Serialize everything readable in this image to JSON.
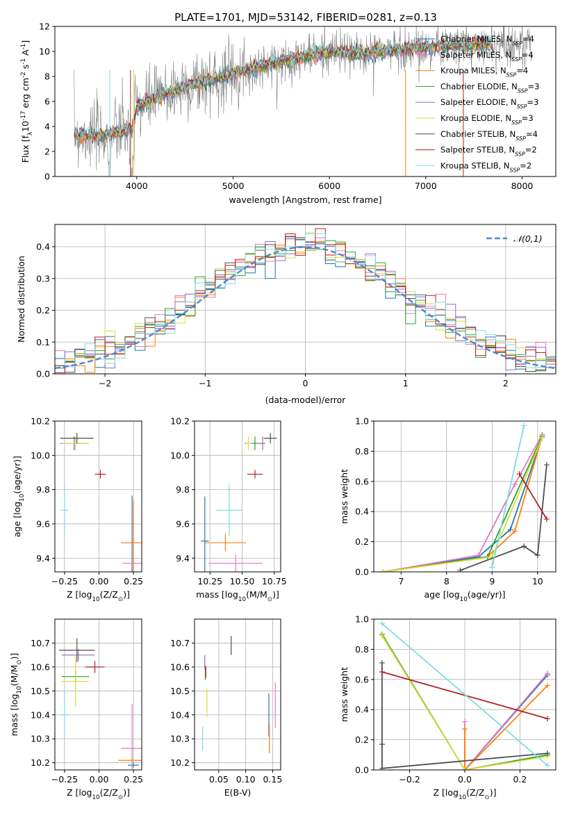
{
  "figure": {
    "title": "PLATE=1701, MJD=53142, FIBERID=0281, z=0.13"
  },
  "series": [
    {
      "name": "Chabrier MILES, N$_{SSP}$=4",
      "label_main": "Chabrier MILES, N",
      "label_sub": "SSP",
      "label_tail": "=4",
      "color": "#1f77b4"
    },
    {
      "name": "Salpeter MILES, N$_{SSP}$=4",
      "label_main": "Salpeter MILES, N",
      "label_sub": "SSP",
      "label_tail": "=4",
      "color": "#e377c2"
    },
    {
      "name": "Kroupa MILES, N$_{SSP}$=4",
      "label_main": "Kroupa MILES, N",
      "label_sub": "SSP",
      "label_tail": "=4",
      "color": "#ff7f0e"
    },
    {
      "name": "Chabrier ELODIE, N$_{SSP}$=3",
      "label_main": "Chabrier ELODIE, N",
      "label_sub": "SSP",
      "label_tail": "=3",
      "color": "#2ca02c"
    },
    {
      "name": "Salpeter ELODIE, N$_{SSP}$=3",
      "label_main": "Salpeter ELODIE, N",
      "label_sub": "SSP",
      "label_tail": "=3",
      "color": "#9467bd"
    },
    {
      "name": "Kroupa ELODIE, N$_{SSP}$=3",
      "label_main": "Kroupa ELODIE, N",
      "label_sub": "SSP",
      "label_tail": "=3",
      "color": "#dbdb3d"
    },
    {
      "name": "Chabrier STELIB, N$_{SSP}$=4",
      "label_main": "Chabrier STELIB, N",
      "label_sub": "SSP",
      "label_tail": "=4",
      "color": "#4d4d4d"
    },
    {
      "name": "Salpeter STELIB, N$_{SSP}$=2",
      "label_main": "Salpeter STELIB, N",
      "label_sub": "SSP",
      "label_tail": "=2",
      "color": "#b22222"
    },
    {
      "name": "Kroupa STELIB, N$_{SSP}$=2",
      "label_main": "Kroupa STELIB, N",
      "label_sub": "SSP",
      "label_tail": "=2",
      "color": "#7fdbe0"
    }
  ],
  "chart_data": [
    {
      "id": "spectrum",
      "type": "line",
      "xlabel": "wavelength [Angstrom, rest frame]",
      "ylabel": "Flux [f$_\\lambda$10$^{-17}$ erg cm$^{-2}$ s$^{-1}$ A$^{-1}$]",
      "xlim": [
        3150,
        8350
      ],
      "ylim": [
        0,
        12
      ],
      "xticks": [
        4000,
        5000,
        6000,
        7000,
        8000
      ],
      "yticks": [
        0,
        2,
        4,
        6,
        8,
        10,
        12
      ],
      "data_color": "#808080",
      "data_range": [
        3350,
        8100
      ],
      "model_range": [
        3350,
        7700
      ],
      "continuum": [
        [
          3350,
          3.4
        ],
        [
          3600,
          3.2
        ],
        [
          3800,
          3.5
        ],
        [
          3950,
          3.8
        ],
        [
          4000,
          5.5
        ],
        [
          4200,
          6.3
        ],
        [
          4500,
          7.2
        ],
        [
          4800,
          7.8
        ],
        [
          5000,
          8.3
        ],
        [
          5200,
          8.6
        ],
        [
          5500,
          9.2
        ],
        [
          5800,
          9.7
        ],
        [
          6000,
          10.0
        ],
        [
          6300,
          9.8
        ],
        [
          6500,
          10.0
        ],
        [
          6800,
          10.2
        ],
        [
          7200,
          10.4
        ],
        [
          7700,
          10.6
        ],
        [
          8100,
          10.5
        ]
      ],
      "dips": [
        [
          3720,
          0
        ],
        [
          3935,
          0
        ],
        [
          3968,
          0
        ],
        [
          6790,
          0
        ],
        [
          7390,
          0
        ]
      ],
      "legend_position": "top-right"
    },
    {
      "id": "residuals",
      "type": "histogram",
      "xlabel": "(data-model)/error",
      "ylabel": "Normed distribution",
      "xlim": [
        -2.5,
        2.5
      ],
      "ylim": [
        0,
        0.47
      ],
      "xticks": [
        -2,
        -1,
        0,
        1,
        2
      ],
      "yticks": [
        0,
        0.1,
        0.2,
        0.3,
        0.4
      ],
      "grid": true,
      "bin_width": 0.1,
      "normal_curve": {
        "label": "$\\mathcal{N}(0,1)$",
        "color": "#5588d0",
        "style": "dashed"
      },
      "legend_position": "top-right"
    },
    {
      "id": "z-age",
      "type": "scatter",
      "xlabel": "Z [log$_{10}$(Z/Z$_\\odot$)]",
      "ylabel": "age  [log$_{10}$(age/yr)]",
      "xlim": [
        -0.32,
        0.31
      ],
      "ylim": [
        9.32,
        10.2
      ],
      "xticks": [
        -0.25,
        0.0,
        0.25
      ],
      "yticks": [
        9.4,
        9.6,
        9.8,
        10.0,
        10.2
      ],
      "grid": true,
      "points": [
        {
          "series": 0,
          "x": 0.24,
          "y": 9.49,
          "xerr": 0.05,
          "yerr": 0.55
        },
        {
          "series": 1,
          "x": 0.25,
          "y": 9.37,
          "xerr": 0.08,
          "yerr": 0.65
        },
        {
          "series": 2,
          "x": 0.25,
          "y": 9.49,
          "xerr": 0.09,
          "yerr": 0.5
        },
        {
          "series": 3,
          "x": -0.18,
          "y": 10.07,
          "xerr": 0.1,
          "yerr": 0.08
        },
        {
          "series": 4,
          "x": -0.18,
          "y": 10.07,
          "xerr": 0.1,
          "yerr": 0.08
        },
        {
          "series": 5,
          "x": -0.17,
          "y": 10.07,
          "xerr": 0.1,
          "yerr": 0.08
        },
        {
          "series": 6,
          "x": -0.16,
          "y": 10.1,
          "xerr": 0.12,
          "yerr": 0.06
        },
        {
          "series": 7,
          "x": 0.01,
          "y": 9.89,
          "xerr": 0.04,
          "yerr": 0.05
        },
        {
          "series": 8,
          "x": -0.25,
          "y": 9.68,
          "xerr": 0.03,
          "yerr": 0.3
        }
      ]
    },
    {
      "id": "mass-age",
      "type": "scatter",
      "xlabel": "mass [log$_{10}$(M/M$_\\odot$)]",
      "ylabel": "",
      "xlim": [
        10.13,
        10.8
      ],
      "ylim": [
        9.32,
        10.2
      ],
      "xticks": [
        10.25,
        10.5,
        10.75
      ],
      "yticks": [
        9.4,
        9.6,
        9.8,
        10.0,
        10.2
      ],
      "grid": true,
      "points": [
        {
          "series": 0,
          "x": 10.21,
          "y": 9.5,
          "xerr": 0.03,
          "yerr": 0.52
        },
        {
          "series": 1,
          "x": 10.45,
          "y": 9.37,
          "xerr": 0.21,
          "yerr": 0.1
        },
        {
          "series": 2,
          "x": 10.37,
          "y": 9.49,
          "xerr": 0.16,
          "yerr": 0.1
        },
        {
          "series": 3,
          "x": 10.6,
          "y": 10.07,
          "xerr": 0.08,
          "yerr": 0.08
        },
        {
          "series": 4,
          "x": 10.66,
          "y": 10.07,
          "xerr": 0.02,
          "yerr": 0.08
        },
        {
          "series": 5,
          "x": 10.55,
          "y": 10.07,
          "xerr": 0.02,
          "yerr": 0.08
        },
        {
          "series": 6,
          "x": 10.72,
          "y": 10.1,
          "xerr": 0.05,
          "yerr": 0.06
        },
        {
          "series": 7,
          "x": 10.6,
          "y": 9.89,
          "xerr": 0.06,
          "yerr": 0.05
        },
        {
          "series": 8,
          "x": 10.4,
          "y": 9.68,
          "xerr": 0.1,
          "yerr": 0.3
        }
      ]
    },
    {
      "id": "age-weight",
      "type": "line",
      "xlabel": "age  [log$_{10}$(age/yr)]",
      "ylabel": "mass weight",
      "xlim": [
        6.4,
        10.4
      ],
      "ylim": [
        0,
        1.0
      ],
      "xticks": [
        7,
        8,
        9,
        10
      ],
      "yticks": [
        0,
        0.2,
        0.4,
        0.6,
        0.8,
        1.0
      ],
      "grid": true
    },
    {
      "id": "z-mass",
      "type": "scatter",
      "xlabel": "Z [log$_{10}$(Z/Z$_\\odot$)]",
      "ylabel": "mass [log$_{10}$(M/M$_\\odot$)]",
      "xlim": [
        -0.32,
        0.31
      ],
      "ylim": [
        10.17,
        10.8
      ],
      "xticks": [
        -0.25,
        0.0,
        0.25
      ],
      "yticks": [
        10.2,
        10.3,
        10.4,
        10.5,
        10.6,
        10.7
      ],
      "grid": true,
      "points": [
        {
          "series": 0,
          "x": 0.25,
          "y": 10.19,
          "xerr": 0.04,
          "yerr": 0.02
        },
        {
          "series": 1,
          "x": 0.24,
          "y": 10.26,
          "xerr": 0.08,
          "yerr": 0.37
        },
        {
          "series": 2,
          "x": 0.24,
          "y": 10.21,
          "xerr": 0.1,
          "yerr": 0.03
        },
        {
          "series": 3,
          "x": -0.17,
          "y": 10.56,
          "xerr": 0.1,
          "yerr": 0.05
        },
        {
          "series": 4,
          "x": -0.15,
          "y": 10.65,
          "xerr": 0.12,
          "yerr": 0.05
        },
        {
          "series": 5,
          "x": -0.17,
          "y": 10.54,
          "xerr": 0.1,
          "yerr": 0.21
        },
        {
          "series": 6,
          "x": -0.16,
          "y": 10.67,
          "xerr": 0.13,
          "yerr": 0.1
        },
        {
          "series": 7,
          "x": -0.03,
          "y": 10.6,
          "xerr": 0.07,
          "yerr": 0.05
        },
        {
          "series": 8,
          "x": -0.25,
          "y": 10.4,
          "xerr": 0.03,
          "yerr": 0.2
        }
      ]
    },
    {
      "id": "ebv-mass",
      "type": "scatter",
      "xlabel": "E(B-V)",
      "ylabel": "",
      "xlim": [
        0.005,
        0.165
      ],
      "ylim": [
        10.17,
        10.8
      ],
      "xticks": [
        0.05,
        0.1,
        0.15
      ],
      "yticks": [
        10.2,
        10.3,
        10.4,
        10.5,
        10.6,
        10.7
      ],
      "grid": true,
      "points": [
        {
          "series": 0,
          "x": 0.143,
          "y": 10.4,
          "yerr": 0.18
        },
        {
          "series": 1,
          "x": 0.155,
          "y": 10.44,
          "yerr": 0.19
        },
        {
          "series": 2,
          "x": 0.144,
          "y": 10.3,
          "yerr": 0.12
        },
        {
          "series": 3,
          "x": 0.025,
          "y": 10.57,
          "yerr": 0.05
        },
        {
          "series": 4,
          "x": 0.024,
          "y": 10.62,
          "yerr": 0.06
        },
        {
          "series": 5,
          "x": 0.028,
          "y": 10.45,
          "yerr": 0.12
        },
        {
          "series": 6,
          "x": 0.073,
          "y": 10.69,
          "yerr": 0.08
        },
        {
          "series": 7,
          "x": 0.026,
          "y": 10.58,
          "yerr": 0.05
        },
        {
          "series": 8,
          "x": 0.02,
          "y": 10.3,
          "yerr": 0.1
        }
      ]
    },
    {
      "id": "z-weight",
      "type": "line",
      "xlabel": "Z [log$_{10}$(Z/Z$_\\odot$)]",
      "ylabel": "mass weight",
      "xlim": [
        -0.33,
        0.33
      ],
      "ylim": [
        0,
        1.0
      ],
      "xticks": [
        -0.2,
        0.0,
        0.2
      ],
      "yticks": [
        0,
        0.2,
        0.4,
        0.6,
        0.8,
        1.0
      ],
      "grid": true
    }
  ]
}
